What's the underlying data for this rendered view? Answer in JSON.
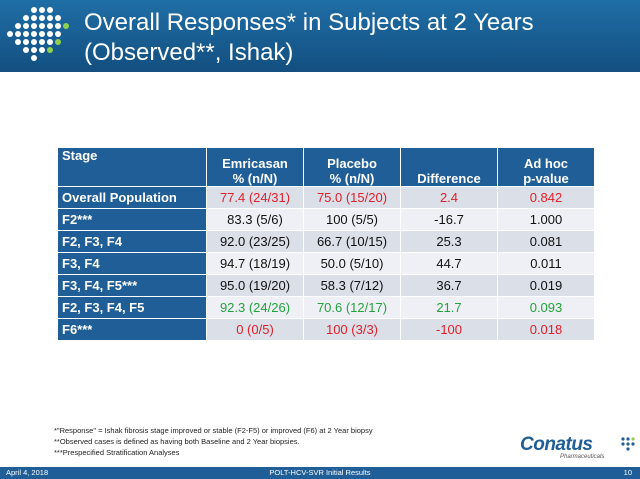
{
  "slide": {
    "title_line1": "Overall Responses* in Subjects at 2 Years",
    "title_line2": "(Observed**, Ishak)"
  },
  "table": {
    "headers": {
      "stage": "Stage",
      "emricasan_l1": "Emricasan",
      "emricasan_l2": "% (n/N)",
      "placebo_l1": "Placebo",
      "placebo_l2": "% (n/N)",
      "difference": "Difference",
      "pvalue_l1": "Ad hoc",
      "pvalue_l2": "p-value"
    },
    "rows": [
      {
        "stage": "Overall Population",
        "emricasan": "77.4 (24/31)",
        "placebo": "75.0 (15/20)",
        "difference": "2.4",
        "pvalue": "0.842",
        "highlight": "red"
      },
      {
        "stage": "F2***",
        "emricasan": "83.3 (5/6)",
        "placebo": "100 (5/5)",
        "difference": "-16.7",
        "pvalue": "1.000",
        "highlight": ""
      },
      {
        "stage": "F2, F3, F4",
        "emricasan": "92.0 (23/25)",
        "placebo": "66.7 (10/15)",
        "difference": "25.3",
        "pvalue": "0.081",
        "highlight": ""
      },
      {
        "stage": "F3, F4",
        "emricasan": "94.7 (18/19)",
        "placebo": "50.0 (5/10)",
        "difference": "44.7",
        "pvalue": "0.011",
        "highlight": ""
      },
      {
        "stage": "F3, F4, F5***",
        "emricasan": "95.0 (19/20)",
        "placebo": "58.3 (7/12)",
        "difference": "36.7",
        "pvalue": "0.019",
        "highlight": ""
      },
      {
        "stage": "F2, F3, F4, F5",
        "emricasan": "92.3 (24/26)",
        "placebo": "70.6 (12/17)",
        "difference": "21.7",
        "pvalue": "0.093",
        "highlight": "green"
      },
      {
        "stage": "F6***",
        "emricasan": "0 (0/5)",
        "placebo": "100 (3/3)",
        "difference": "-100",
        "pvalue": "0.018",
        "highlight": "red"
      }
    ]
  },
  "footnotes": [
    "*\"Response\" = Ishak fibrosis stage improved or stable (F2-F5) or improved (F6) at 2 Year biopsy",
    "**Observed cases is defined as having both Baseline and 2 Year biopsies.",
    "***Prespecified Stratification Analyses"
  ],
  "brand": {
    "name": "Conatus",
    "sub": "Pharmaceuticals"
  },
  "footer": {
    "date": "April 4, 2018",
    "center": "POLT-HCV-SVR Initial Results",
    "page": "10"
  },
  "colors": {
    "header_blue": "#1f6ea6",
    "table_blue": "#1f5e96",
    "red": "#e0202a",
    "green": "#22a23c"
  }
}
